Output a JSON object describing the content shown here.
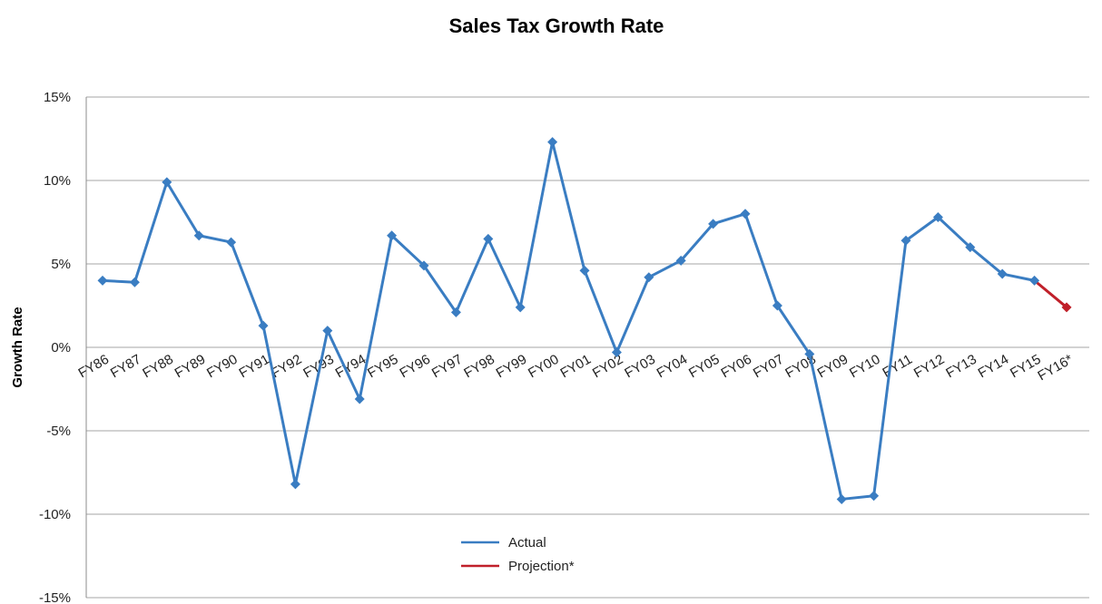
{
  "chart_data": {
    "type": "line",
    "title": "Sales Tax Growth Rate",
    "xlabel": "",
    "ylabel": "Growth Rate",
    "ylim": [
      -15,
      15
    ],
    "yticks": [
      "15%",
      "10%",
      "5%",
      "0%",
      "-5%",
      "-10%",
      "-15%"
    ],
    "ytick_values": [
      15,
      10,
      5,
      0,
      -5,
      -10,
      -15
    ],
    "grid": true,
    "categories": [
      "FY86",
      "FY87",
      "FY88",
      "FY89",
      "FY90",
      "FY91",
      "FY92",
      "FY93",
      "FY94",
      "FY95",
      "FY96",
      "FY97",
      "FY98",
      "FY99",
      "FY00",
      "FY01",
      "FY02",
      "FY03",
      "FY04",
      "FY05",
      "FY06",
      "FY07",
      "FY08",
      "FY09",
      "FY10",
      "FY11",
      "FY12",
      "FY13",
      "FY14",
      "FY15",
      "FY16*"
    ],
    "series": [
      {
        "name": "Actual",
        "color": "#3a7dc2",
        "values": [
          4.0,
          3.9,
          9.9,
          6.7,
          6.3,
          1.3,
          -8.2,
          1.0,
          -3.1,
          6.7,
          4.9,
          2.1,
          6.5,
          2.4,
          12.3,
          4.6,
          -0.3,
          4.2,
          5.2,
          7.4,
          8.0,
          2.5,
          -0.4,
          -9.1,
          -8.9,
          6.4,
          7.8,
          6.0,
          4.4,
          4.0,
          null
        ]
      },
      {
        "name": "Projection*",
        "color": "#c0202a",
        "values": [
          null,
          null,
          null,
          null,
          null,
          null,
          null,
          null,
          null,
          null,
          null,
          null,
          null,
          null,
          null,
          null,
          null,
          null,
          null,
          null,
          null,
          null,
          null,
          null,
          null,
          null,
          null,
          null,
          null,
          4.0,
          2.4
        ]
      }
    ],
    "legend_position": "bottom-center"
  }
}
